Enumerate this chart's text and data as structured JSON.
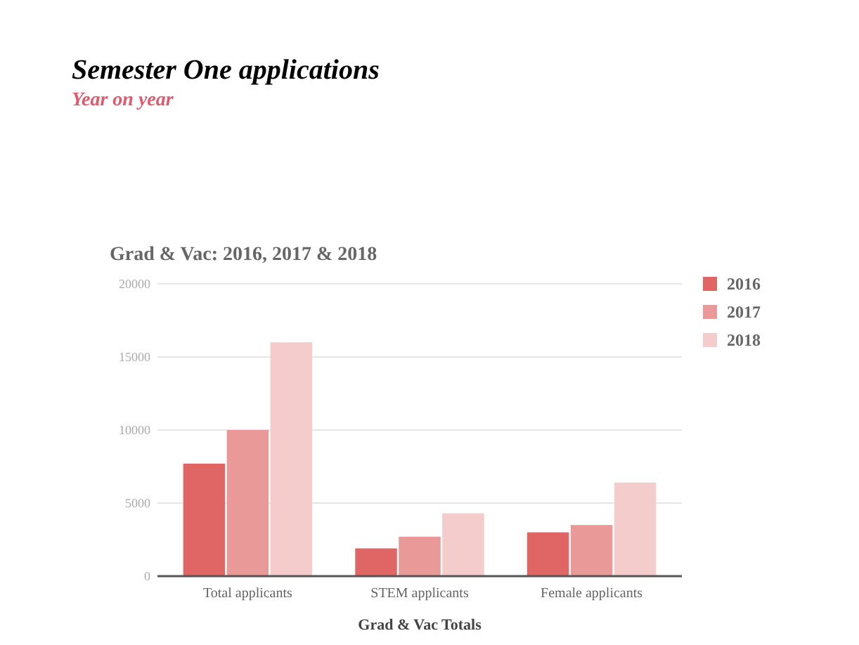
{
  "chart_data": {
    "type": "bar",
    "title": "Semester One applications",
    "subtitle": "Year on year",
    "annotations": [
      "Grad & Vac: 2016, 2017 & 2018"
    ],
    "xlabel": "Grad & Vac Totals",
    "categories": [
      "Total applicants",
      "STEM applicants",
      "Female applicants"
    ],
    "series": [
      {
        "name": "2016",
        "color": "#e06666",
        "values": [
          7700,
          1900,
          3000
        ]
      },
      {
        "name": "2017",
        "color": "#ea9999",
        "values": [
          10000,
          2700,
          3500
        ]
      },
      {
        "name": "2018",
        "color": "#f4cccc",
        "values": [
          16000,
          4300,
          6400
        ]
      }
    ],
    "ylim": [
      0,
      20000
    ],
    "yticks": [
      0,
      5000,
      10000,
      15000,
      20000
    ],
    "grid": "y",
    "legend": "right"
  }
}
